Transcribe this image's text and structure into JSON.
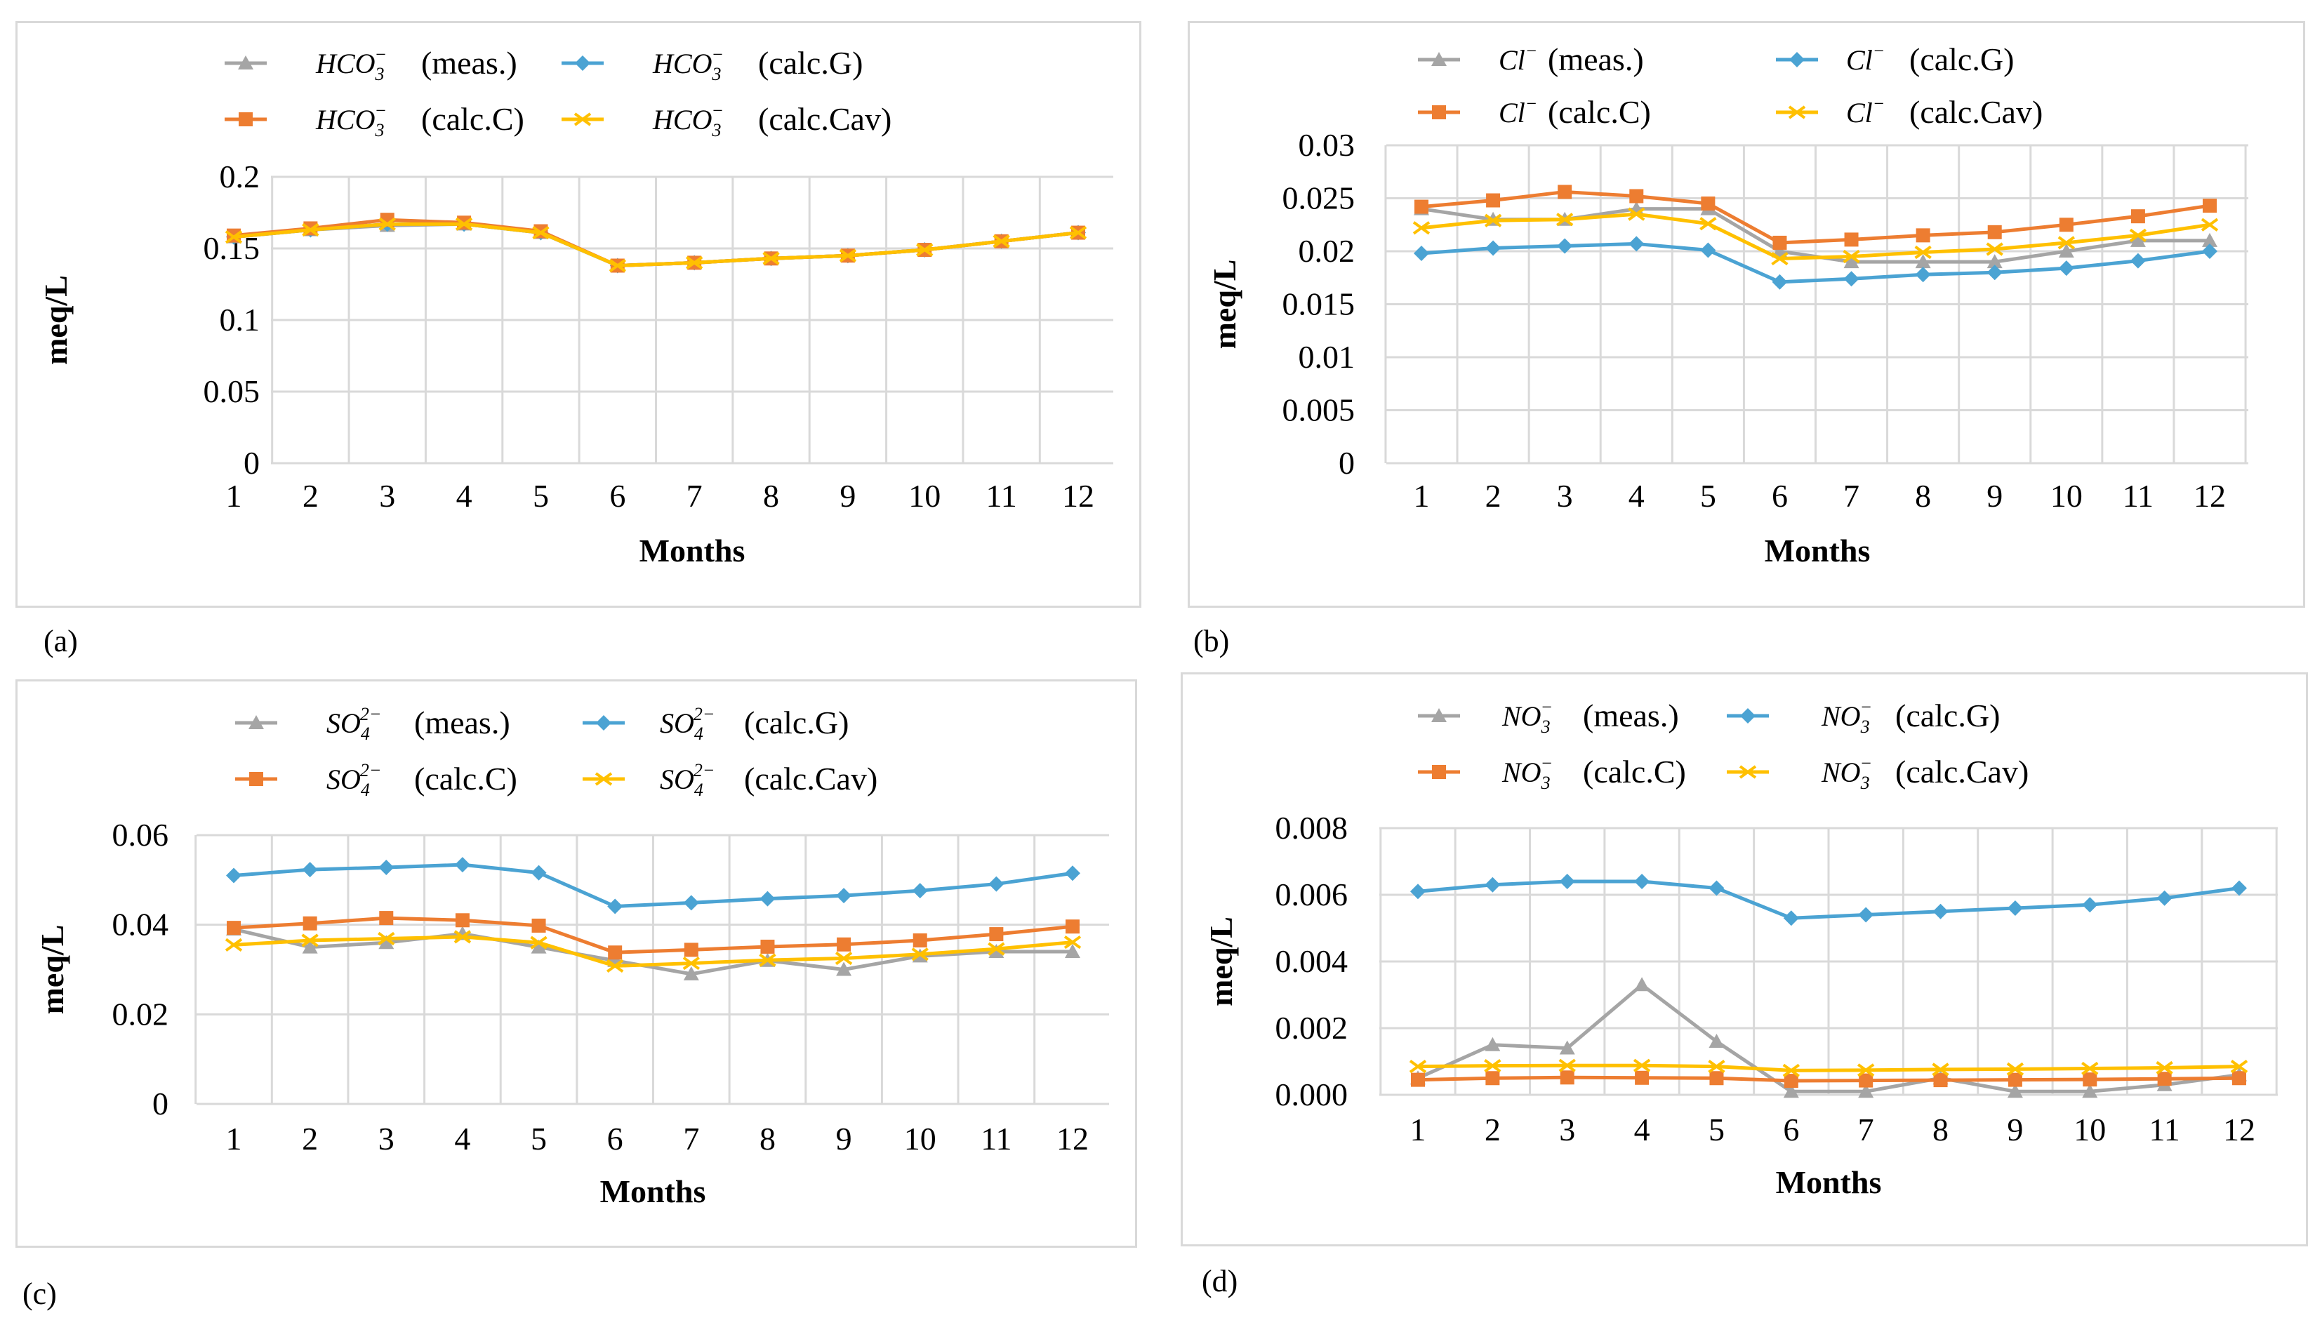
{
  "figure": {
    "colors": {
      "meas": "#a5a5a5",
      "calcG": "#4ba3d3",
      "calcC": "#ed7d31",
      "calcCav": "#ffc000",
      "grid": "#d9d9d9",
      "frame": "#d9d9d9"
    }
  },
  "chart_data": [
    {
      "id": "a",
      "panel_label": "(a)",
      "type": "line",
      "ion": "HCO",
      "ion_sub": "3",
      "ion_sup": "−",
      "xlabel": "Months",
      "ylabel": "meq/L",
      "ylim": [
        0,
        0.2
      ],
      "yticks": [
        0,
        0.05,
        0.1,
        0.15,
        0.2
      ],
      "ytick_labels": [
        "0",
        "0.05",
        "0.1",
        "0.15",
        "0.2"
      ],
      "categories": [
        "1",
        "2",
        "3",
        "4",
        "5",
        "6",
        "7",
        "8",
        "9",
        "10",
        "11",
        "12"
      ],
      "series": [
        {
          "key": "meas",
          "name": "(meas.)",
          "marker": "triangle",
          "values": [
            0.158,
            0.163,
            0.166,
            0.167,
            0.161,
            0.138,
            0.14,
            0.143,
            0.145,
            0.149,
            0.155,
            0.161
          ]
        },
        {
          "key": "calcG",
          "name": "(calc.G)",
          "marker": "diamond",
          "values": [
            0.158,
            0.163,
            0.167,
            0.167,
            0.161,
            0.138,
            0.14,
            0.143,
            0.145,
            0.149,
            0.155,
            0.161
          ]
        },
        {
          "key": "calcC",
          "name": "(calc.C)",
          "marker": "square",
          "values": [
            0.159,
            0.164,
            0.17,
            0.168,
            0.162,
            0.138,
            0.14,
            0.143,
            0.145,
            0.149,
            0.155,
            0.161
          ]
        },
        {
          "key": "calcCav",
          "name": "(calc.Cav)",
          "marker": "x",
          "values": [
            0.158,
            0.163,
            0.167,
            0.167,
            0.161,
            0.138,
            0.14,
            0.143,
            0.145,
            0.149,
            0.155,
            0.161
          ]
        }
      ]
    },
    {
      "id": "b",
      "panel_label": "(b)",
      "type": "line",
      "ion": "Cl",
      "ion_sub": "",
      "ion_sup": "−",
      "xlabel": "Months",
      "ylabel": "meq/L",
      "ylim": [
        0,
        0.03
      ],
      "yticks": [
        0,
        0.005,
        0.01,
        0.015,
        0.02,
        0.025,
        0.03
      ],
      "ytick_labels": [
        "0",
        "0.005",
        "0.01",
        "0.015",
        "0.02",
        "0.025",
        "0.03"
      ],
      "categories": [
        "1",
        "2",
        "3",
        "4",
        "5",
        "6",
        "7",
        "8",
        "9",
        "10",
        "11",
        "12"
      ],
      "series": [
        {
          "key": "meas",
          "name": "(meas.)",
          "marker": "triangle",
          "values": [
            0.024,
            0.023,
            0.023,
            0.024,
            0.024,
            0.02,
            0.019,
            0.019,
            0.019,
            0.02,
            0.021,
            0.021
          ]
        },
        {
          "key": "calcG",
          "name": "(calc.G)",
          "marker": "diamond",
          "values": [
            0.0198,
            0.0203,
            0.0205,
            0.0207,
            0.0201,
            0.0171,
            0.0174,
            0.0178,
            0.018,
            0.0184,
            0.0191,
            0.02
          ]
        },
        {
          "key": "calcC",
          "name": "(calc.C)",
          "marker": "square",
          "values": [
            0.0242,
            0.0248,
            0.0256,
            0.0252,
            0.0245,
            0.0208,
            0.0211,
            0.0215,
            0.0218,
            0.0225,
            0.0233,
            0.0243
          ]
        },
        {
          "key": "calcCav",
          "name": "(calc.Cav)",
          "marker": "x",
          "values": [
            0.0222,
            0.0229,
            0.023,
            0.0235,
            0.0226,
            0.0193,
            0.0195,
            0.0199,
            0.0202,
            0.0208,
            0.0215,
            0.0225
          ]
        }
      ]
    },
    {
      "id": "c",
      "panel_label": "(c)",
      "type": "line",
      "ion": "SO",
      "ion_sub": "4",
      "ion_sup": "2−",
      "xlabel": "Months",
      "ylabel": "meq/L",
      "ylim": [
        0,
        0.06
      ],
      "yticks": [
        0,
        0.02,
        0.04,
        0.06
      ],
      "ytick_labels": [
        "0",
        "0.02",
        "0.04",
        "0.06"
      ],
      "categories": [
        "1",
        "2",
        "3",
        "4",
        "5",
        "6",
        "7",
        "8",
        "9",
        "10",
        "11",
        "12"
      ],
      "series": [
        {
          "key": "meas",
          "name": "(meas.)",
          "marker": "triangle",
          "values": [
            0.039,
            0.035,
            0.036,
            0.038,
            0.035,
            0.032,
            0.029,
            0.032,
            0.03,
            0.033,
            0.034,
            0.034
          ]
        },
        {
          "key": "calcG",
          "name": "(calc.G)",
          "marker": "diamond",
          "values": [
            0.051,
            0.0523,
            0.0528,
            0.0534,
            0.0516,
            0.0441,
            0.0449,
            0.0458,
            0.0465,
            0.0476,
            0.0491,
            0.0515
          ]
        },
        {
          "key": "calcC",
          "name": "(calc.C)",
          "marker": "square",
          "values": [
            0.0393,
            0.0403,
            0.0415,
            0.041,
            0.0398,
            0.0338,
            0.0344,
            0.0351,
            0.0356,
            0.0365,
            0.0379,
            0.0396
          ]
        },
        {
          "key": "calcCav",
          "name": "(calc.Cav)",
          "marker": "x",
          "values": [
            0.0355,
            0.0365,
            0.0369,
            0.0373,
            0.036,
            0.0308,
            0.0314,
            0.0321,
            0.0325,
            0.0334,
            0.0346,
            0.0361
          ]
        }
      ]
    },
    {
      "id": "d",
      "panel_label": "(d)",
      "type": "line",
      "ion": "NO",
      "ion_sub": "3",
      "ion_sup": "−",
      "xlabel": "Months",
      "ylabel": "meq/L",
      "ylim": [
        0,
        0.008
      ],
      "yticks": [
        0,
        0.002,
        0.004,
        0.006,
        0.008
      ],
      "ytick_labels": [
        "0.000",
        "0.002",
        "0.004",
        "0.006",
        "0.008"
      ],
      "categories": [
        "1",
        "2",
        "3",
        "4",
        "5",
        "6",
        "7",
        "8",
        "9",
        "10",
        "11",
        "12"
      ],
      "series": [
        {
          "key": "meas",
          "name": "(meas.)",
          "marker": "triangle",
          "values": [
            0.0005,
            0.0015,
            0.0014,
            0.0033,
            0.0016,
            0.0001,
            0.0001,
            0.0005,
            0.0001,
            0.0001,
            0.0003,
            0.0006
          ]
        },
        {
          "key": "calcG",
          "name": "(calc.G)",
          "marker": "diamond",
          "values": [
            0.0061,
            0.0063,
            0.0064,
            0.0064,
            0.0062,
            0.0053,
            0.0054,
            0.0055,
            0.0056,
            0.0057,
            0.0059,
            0.0062
          ]
        },
        {
          "key": "calcC",
          "name": "(calc.C)",
          "marker": "square",
          "values": [
            0.00045,
            0.0005,
            0.00052,
            0.00051,
            0.0005,
            0.00042,
            0.00043,
            0.00044,
            0.00045,
            0.00046,
            0.00048,
            0.0005
          ]
        },
        {
          "key": "calcCav",
          "name": "(calc.Cav)",
          "marker": "x",
          "values": [
            0.00085,
            0.00087,
            0.00088,
            0.00088,
            0.00085,
            0.00073,
            0.00074,
            0.00076,
            0.00077,
            0.00079,
            0.00081,
            0.00085
          ]
        }
      ]
    }
  ]
}
